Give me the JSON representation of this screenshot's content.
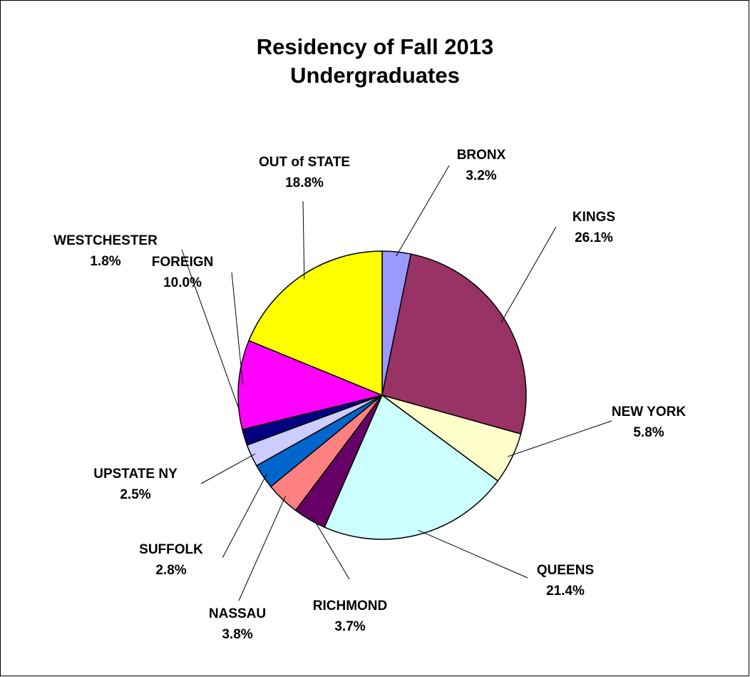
{
  "chart_data": {
    "type": "pie",
    "title": "Residency of Fall 2013 Undergraduates",
    "categories": [
      "BRONX",
      "KINGS",
      "NEW YORK",
      "QUEENS",
      "RICHMOND",
      "NASSAU",
      "SUFFOLK",
      "UPSTATE NY",
      "WESTCHESTER",
      "FOREIGN",
      "OUT of STATE"
    ],
    "values": [
      3.2,
      26.1,
      5.8,
      21.4,
      3.7,
      3.8,
      2.8,
      2.5,
      1.8,
      10.0,
      18.8
    ],
    "value_labels": [
      "3.2%",
      "26.1%",
      "5.8%",
      "21.4%",
      "3.7%",
      "3.8%",
      "2.8%",
      "2.5%",
      "1.8%",
      "10.0%",
      "18.8%"
    ],
    "colors": [
      "#9999ff",
      "#993366",
      "#ffffcc",
      "#ccffff",
      "#660066",
      "#ff8080",
      "#0066cc",
      "#ccccff",
      "#000080",
      "#ff00ff",
      "#ffff00"
    ]
  }
}
